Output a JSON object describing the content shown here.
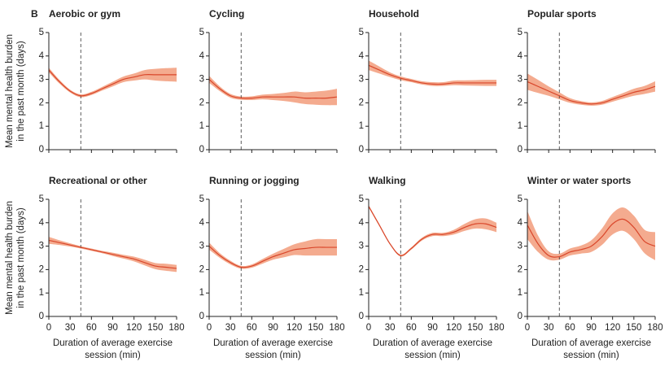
{
  "panel_label": "B",
  "chart_data": [
    {
      "type": "line",
      "title": "Aerobic or gym",
      "ylabel": [
        "Mean mental health burden",
        "in the past month (days)"
      ],
      "show_xtick_labels": false,
      "x": [
        0,
        15,
        30,
        45,
        60,
        75,
        90,
        105,
        120,
        135,
        150,
        165,
        180
      ],
      "values": [
        3.4,
        2.9,
        2.5,
        2.3,
        2.4,
        2.6,
        2.8,
        3.0,
        3.1,
        3.2,
        3.2,
        3.2,
        3.2
      ],
      "lower": [
        3.3,
        2.82,
        2.44,
        2.24,
        2.33,
        2.52,
        2.7,
        2.88,
        2.95,
        3.0,
        2.95,
        2.92,
        2.9
      ],
      "upper": [
        3.5,
        2.98,
        2.56,
        2.36,
        2.47,
        2.68,
        2.9,
        3.12,
        3.25,
        3.4,
        3.45,
        3.48,
        3.5
      ],
      "reference_x": 45,
      "color": "#d9472b",
      "band_color": "#f4ab8f",
      "xlim": [
        0,
        180
      ],
      "xticks": [
        0,
        30,
        60,
        90,
        120,
        150,
        180
      ],
      "ylim": [
        0,
        5
      ],
      "yticks": [
        0,
        1,
        2,
        3,
        4,
        5
      ]
    },
    {
      "type": "line",
      "title": "Cycling",
      "show_xtick_labels": false,
      "x": [
        0,
        15,
        30,
        45,
        60,
        75,
        90,
        105,
        120,
        135,
        150,
        165,
        180
      ],
      "values": [
        3.0,
        2.6,
        2.3,
        2.2,
        2.2,
        2.25,
        2.25,
        2.25,
        2.25,
        2.2,
        2.2,
        2.2,
        2.25
      ],
      "lower": [
        2.85,
        2.5,
        2.22,
        2.13,
        2.12,
        2.15,
        2.12,
        2.08,
        2.02,
        1.95,
        1.92,
        1.9,
        1.9
      ],
      "upper": [
        3.15,
        2.7,
        2.38,
        2.27,
        2.28,
        2.35,
        2.38,
        2.42,
        2.48,
        2.45,
        2.48,
        2.52,
        2.6
      ],
      "reference_x": 45,
      "color": "#d9472b",
      "band_color": "#f4ab8f",
      "xlim": [
        0,
        180
      ],
      "xticks": [
        0,
        30,
        60,
        90,
        120,
        150,
        180
      ],
      "ylim": [
        0,
        5
      ],
      "yticks": [
        0,
        1,
        2,
        3,
        4,
        5
      ]
    },
    {
      "type": "line",
      "title": "Household",
      "show_xtick_labels": false,
      "x": [
        0,
        15,
        30,
        45,
        60,
        75,
        90,
        105,
        120,
        135,
        150,
        165,
        180
      ],
      "values": [
        3.6,
        3.4,
        3.2,
        3.05,
        2.95,
        2.85,
        2.8,
        2.8,
        2.85,
        2.85,
        2.85,
        2.85,
        2.85
      ],
      "lower": [
        3.4,
        3.25,
        3.1,
        2.97,
        2.88,
        2.78,
        2.72,
        2.72,
        2.75,
        2.74,
        2.73,
        2.72,
        2.72
      ],
      "upper": [
        3.8,
        3.55,
        3.3,
        3.13,
        3.02,
        2.92,
        2.88,
        2.88,
        2.95,
        2.96,
        2.97,
        2.98,
        2.98
      ],
      "reference_x": 45,
      "color": "#d9472b",
      "band_color": "#f4ab8f",
      "xlim": [
        0,
        180
      ],
      "xticks": [
        0,
        30,
        60,
        90,
        120,
        150,
        180
      ],
      "ylim": [
        0,
        5
      ],
      "yticks": [
        0,
        1,
        2,
        3,
        4,
        5
      ]
    },
    {
      "type": "line",
      "title": "Popular sports",
      "show_xtick_labels": false,
      "x": [
        0,
        15,
        30,
        45,
        60,
        75,
        90,
        105,
        120,
        135,
        150,
        165,
        180
      ],
      "values": [
        2.9,
        2.7,
        2.5,
        2.3,
        2.1,
        2.0,
        1.95,
        2.0,
        2.15,
        2.3,
        2.45,
        2.55,
        2.7
      ],
      "lower": [
        2.55,
        2.42,
        2.3,
        2.15,
        2.0,
        1.92,
        1.88,
        1.92,
        2.05,
        2.18,
        2.3,
        2.38,
        2.48
      ],
      "upper": [
        3.25,
        2.98,
        2.7,
        2.45,
        2.2,
        2.08,
        2.02,
        2.08,
        2.25,
        2.42,
        2.6,
        2.72,
        2.92
      ],
      "reference_x": 45,
      "color": "#d9472b",
      "band_color": "#f4ab8f",
      "xlim": [
        0,
        180
      ],
      "xticks": [
        0,
        30,
        60,
        90,
        120,
        150,
        180
      ],
      "ylim": [
        0,
        5
      ],
      "yticks": [
        0,
        1,
        2,
        3,
        4,
        5
      ]
    },
    {
      "type": "line",
      "title": "Recreational or other",
      "ylabel": [
        "Mean mental health burden",
        "in the past month (days)"
      ],
      "xlabel": [
        "Duration of average exercise",
        "session (min)"
      ],
      "show_xtick_labels": true,
      "x": [
        0,
        15,
        30,
        45,
        60,
        75,
        90,
        105,
        120,
        135,
        150,
        165,
        180
      ],
      "values": [
        3.25,
        3.15,
        3.05,
        2.95,
        2.85,
        2.75,
        2.65,
        2.55,
        2.45,
        2.3,
        2.15,
        2.1,
        2.05
      ],
      "lower": [
        3.1,
        3.05,
        2.98,
        2.9,
        2.8,
        2.7,
        2.58,
        2.47,
        2.35,
        2.18,
        2.02,
        1.95,
        1.9
      ],
      "upper": [
        3.4,
        3.25,
        3.12,
        3.0,
        2.9,
        2.8,
        2.72,
        2.63,
        2.55,
        2.42,
        2.28,
        2.25,
        2.2
      ],
      "reference_x": 45,
      "color": "#d9472b",
      "band_color": "#f4ab8f",
      "xlim": [
        0,
        180
      ],
      "xticks": [
        0,
        30,
        60,
        90,
        120,
        150,
        180
      ],
      "ylim": [
        0,
        5
      ],
      "yticks": [
        0,
        1,
        2,
        3,
        4,
        5
      ]
    },
    {
      "type": "line",
      "title": "Running or jogging",
      "xlabel": [
        "Duration of average exercise",
        "session (min)"
      ],
      "show_xtick_labels": true,
      "x": [
        0,
        15,
        30,
        45,
        60,
        75,
        90,
        105,
        120,
        135,
        150,
        165,
        180
      ],
      "values": [
        3.0,
        2.6,
        2.3,
        2.1,
        2.15,
        2.35,
        2.55,
        2.7,
        2.85,
        2.9,
        2.95,
        2.95,
        2.95
      ],
      "lower": [
        2.85,
        2.5,
        2.22,
        2.04,
        2.08,
        2.25,
        2.42,
        2.52,
        2.62,
        2.6,
        2.6,
        2.6,
        2.6
      ],
      "upper": [
        3.15,
        2.7,
        2.38,
        2.16,
        2.22,
        2.45,
        2.68,
        2.88,
        3.08,
        3.2,
        3.3,
        3.3,
        3.3
      ],
      "reference_x": 45,
      "color": "#d9472b",
      "band_color": "#f4ab8f",
      "xlim": [
        0,
        180
      ],
      "xticks": [
        0,
        30,
        60,
        90,
        120,
        150,
        180
      ],
      "ylim": [
        0,
        5
      ],
      "yticks": [
        0,
        1,
        2,
        3,
        4,
        5
      ]
    },
    {
      "type": "line",
      "title": "Walking",
      "xlabel": [
        "Duration of average exercise",
        "session (min)"
      ],
      "show_xtick_labels": true,
      "x": [
        0,
        15,
        30,
        45,
        60,
        75,
        90,
        105,
        120,
        135,
        150,
        165,
        180
      ],
      "values": [
        4.7,
        3.9,
        3.1,
        2.6,
        2.9,
        3.3,
        3.5,
        3.5,
        3.6,
        3.8,
        3.95,
        3.95,
        3.8
      ],
      "lower": [
        4.65,
        3.86,
        3.07,
        2.56,
        2.85,
        3.24,
        3.43,
        3.43,
        3.5,
        3.65,
        3.75,
        3.72,
        3.6
      ],
      "upper": [
        4.75,
        3.94,
        3.13,
        2.64,
        2.95,
        3.36,
        3.57,
        3.57,
        3.7,
        3.95,
        4.15,
        4.18,
        4.0
      ],
      "reference_x": 45,
      "color": "#d9472b",
      "band_color": "#f4ab8f",
      "xlim": [
        0,
        180
      ],
      "xticks": [
        0,
        30,
        60,
        90,
        120,
        150,
        180
      ],
      "ylim": [
        0,
        5
      ],
      "yticks": [
        0,
        1,
        2,
        3,
        4,
        5
      ]
    },
    {
      "type": "line",
      "title": "Winter or water sports",
      "xlabel": [
        "Duration of average exercise",
        "session (min)"
      ],
      "show_xtick_labels": true,
      "x": [
        0,
        15,
        30,
        45,
        60,
        75,
        90,
        105,
        120,
        135,
        150,
        165,
        180
      ],
      "values": [
        3.9,
        3.1,
        2.6,
        2.55,
        2.75,
        2.85,
        3.0,
        3.4,
        3.95,
        4.15,
        3.8,
        3.2,
        3.0
      ],
      "lower": [
        3.3,
        2.75,
        2.42,
        2.42,
        2.6,
        2.68,
        2.75,
        3.05,
        3.5,
        3.65,
        3.3,
        2.7,
        2.4
      ],
      "upper": [
        4.5,
        3.45,
        2.78,
        2.68,
        2.9,
        3.02,
        3.25,
        3.75,
        4.4,
        4.65,
        4.3,
        3.7,
        3.6
      ],
      "reference_x": 45,
      "color": "#d9472b",
      "band_color": "#f4ab8f",
      "xlim": [
        0,
        180
      ],
      "xticks": [
        0,
        30,
        60,
        90,
        120,
        150,
        180
      ],
      "ylim": [
        0,
        5
      ],
      "yticks": [
        0,
        1,
        2,
        3,
        4,
        5
      ]
    }
  ]
}
